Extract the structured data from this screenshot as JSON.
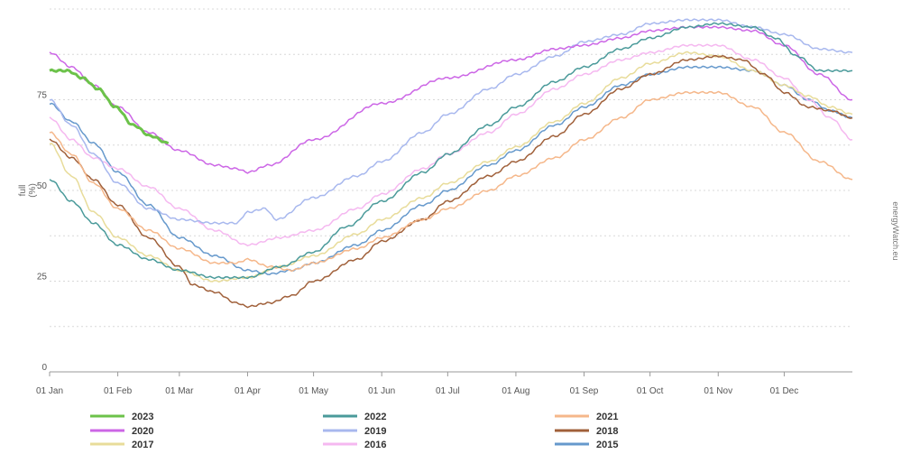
{
  "chart_data": {
    "type": "line",
    "title": "",
    "xlabel": "",
    "ylabel": "full\n(%)",
    "ylim": [
      0,
      100
    ],
    "yticks": [
      0,
      25,
      50,
      75
    ],
    "grid": true,
    "legend_position": "bottom",
    "x_tick_labels": [
      "01 Jan",
      "01 Feb",
      "01 Mar",
      "01 Apr",
      "01 May",
      "01 Jun",
      "01 Jul",
      "01 Aug",
      "01 Sep",
      "01 Oct",
      "01 Nov",
      "01 Dec"
    ],
    "x_tick_days": [
      0,
      31,
      59,
      90,
      120,
      151,
      181,
      212,
      243,
      273,
      304,
      334
    ],
    "x_range_days": [
      0,
      365
    ],
    "credit": "energyWatch.eu",
    "series": [
      {
        "name": "2023",
        "color": "#6cc24a",
        "width": 3,
        "points": [
          [
            0,
            83
          ],
          [
            8,
            83
          ],
          [
            15,
            81
          ],
          [
            22,
            78
          ],
          [
            30,
            73
          ],
          [
            38,
            68
          ],
          [
            46,
            65
          ],
          [
            54,
            63
          ]
        ]
      },
      {
        "name": "2022",
        "color": "#4a9a9a",
        "width": 1.5,
        "points": [
          [
            0,
            53
          ],
          [
            10,
            47
          ],
          [
            20,
            41
          ],
          [
            31,
            35
          ],
          [
            45,
            31
          ],
          [
            59,
            28
          ],
          [
            75,
            26
          ],
          [
            90,
            26
          ],
          [
            105,
            29
          ],
          [
            120,
            33
          ],
          [
            135,
            40
          ],
          [
            151,
            47
          ],
          [
            170,
            55
          ],
          [
            181,
            60
          ],
          [
            200,
            68
          ],
          [
            212,
            73
          ],
          [
            230,
            80
          ],
          [
            243,
            84
          ],
          [
            260,
            89
          ],
          [
            273,
            92
          ],
          [
            290,
            95
          ],
          [
            304,
            96
          ],
          [
            320,
            95
          ],
          [
            330,
            92
          ],
          [
            340,
            87
          ],
          [
            350,
            83
          ],
          [
            365,
            83
          ]
        ]
      },
      {
        "name": "2021",
        "color": "#f5b78a",
        "width": 1.5,
        "points": [
          [
            0,
            66
          ],
          [
            10,
            60
          ],
          [
            20,
            52
          ],
          [
            31,
            45
          ],
          [
            45,
            39
          ],
          [
            59,
            34
          ],
          [
            75,
            30
          ],
          [
            85,
            30
          ],
          [
            90,
            31
          ],
          [
            100,
            29
          ],
          [
            110,
            28
          ],
          [
            120,
            30
          ],
          [
            140,
            34
          ],
          [
            151,
            37
          ],
          [
            170,
            42
          ],
          [
            181,
            45
          ],
          [
            200,
            50
          ],
          [
            212,
            54
          ],
          [
            230,
            59
          ],
          [
            243,
            64
          ],
          [
            260,
            70
          ],
          [
            273,
            75
          ],
          [
            290,
            77
          ],
          [
            304,
            77
          ],
          [
            320,
            73
          ],
          [
            334,
            66
          ],
          [
            350,
            58
          ],
          [
            365,
            53
          ]
        ]
      },
      {
        "name": "2020",
        "color": "#cc66e6",
        "width": 1.5,
        "points": [
          [
            0,
            88
          ],
          [
            10,
            84
          ],
          [
            20,
            79
          ],
          [
            31,
            73
          ],
          [
            45,
            66
          ],
          [
            59,
            61
          ],
          [
            75,
            57
          ],
          [
            85,
            56
          ],
          [
            90,
            55
          ],
          [
            100,
            57
          ],
          [
            120,
            64
          ],
          [
            151,
            74
          ],
          [
            181,
            81
          ],
          [
            212,
            86
          ],
          [
            230,
            89
          ],
          [
            243,
            90
          ],
          [
            260,
            92
          ],
          [
            273,
            94
          ],
          [
            290,
            95
          ],
          [
            304,
            95
          ],
          [
            320,
            94
          ],
          [
            334,
            90
          ],
          [
            350,
            82
          ],
          [
            365,
            75
          ]
        ]
      },
      {
        "name": "2019",
        "color": "#a8b8ee",
        "width": 1.5,
        "points": [
          [
            0,
            75
          ],
          [
            10,
            68
          ],
          [
            20,
            60
          ],
          [
            31,
            52
          ],
          [
            45,
            45
          ],
          [
            59,
            42
          ],
          [
            75,
            41
          ],
          [
            85,
            41
          ],
          [
            90,
            44
          ],
          [
            98,
            45
          ],
          [
            103,
            42
          ],
          [
            120,
            48
          ],
          [
            140,
            54
          ],
          [
            151,
            58
          ],
          [
            170,
            66
          ],
          [
            181,
            71
          ],
          [
            200,
            78
          ],
          [
            212,
            82
          ],
          [
            230,
            87
          ],
          [
            243,
            91
          ],
          [
            260,
            93
          ],
          [
            273,
            96
          ],
          [
            290,
            97
          ],
          [
            304,
            97
          ],
          [
            320,
            95
          ],
          [
            334,
            93
          ],
          [
            350,
            89
          ],
          [
            365,
            88
          ]
        ]
      },
      {
        "name": "2018",
        "color": "#a0603a",
        "width": 1.5,
        "points": [
          [
            0,
            64
          ],
          [
            10,
            59
          ],
          [
            20,
            53
          ],
          [
            31,
            46
          ],
          [
            45,
            37
          ],
          [
            59,
            29
          ],
          [
            65,
            24
          ],
          [
            75,
            22
          ],
          [
            85,
            19
          ],
          [
            90,
            18
          ],
          [
            100,
            19
          ],
          [
            110,
            21
          ],
          [
            120,
            25
          ],
          [
            140,
            31
          ],
          [
            151,
            36
          ],
          [
            170,
            42
          ],
          [
            181,
            47
          ],
          [
            200,
            54
          ],
          [
            212,
            58
          ],
          [
            230,
            65
          ],
          [
            243,
            71
          ],
          [
            260,
            78
          ],
          [
            273,
            82
          ],
          [
            290,
            86
          ],
          [
            304,
            87
          ],
          [
            315,
            86
          ],
          [
            325,
            82
          ],
          [
            334,
            77
          ],
          [
            345,
            73
          ],
          [
            355,
            72
          ],
          [
            365,
            70
          ]
        ]
      },
      {
        "name": "2017",
        "color": "#e8dc9a",
        "width": 1.5,
        "points": [
          [
            0,
            63
          ],
          [
            10,
            54
          ],
          [
            20,
            44
          ],
          [
            31,
            37
          ],
          [
            45,
            32
          ],
          [
            59,
            28
          ],
          [
            75,
            25
          ],
          [
            90,
            26
          ],
          [
            105,
            29
          ],
          [
            120,
            32
          ],
          [
            140,
            38
          ],
          [
            151,
            42
          ],
          [
            170,
            48
          ],
          [
            181,
            52
          ],
          [
            200,
            58
          ],
          [
            212,
            62
          ],
          [
            230,
            69
          ],
          [
            243,
            74
          ],
          [
            260,
            81
          ],
          [
            273,
            85
          ],
          [
            290,
            88
          ],
          [
            304,
            87
          ],
          [
            320,
            83
          ],
          [
            334,
            79
          ],
          [
            345,
            76
          ],
          [
            355,
            73
          ],
          [
            365,
            71
          ]
        ]
      },
      {
        "name": "2016",
        "color": "#f5b8f0",
        "width": 1.5,
        "points": [
          [
            0,
            70
          ],
          [
            10,
            64
          ],
          [
            20,
            59
          ],
          [
            31,
            56
          ],
          [
            45,
            51
          ],
          [
            59,
            45
          ],
          [
            75,
            39
          ],
          [
            90,
            35
          ],
          [
            105,
            37
          ],
          [
            120,
            39
          ],
          [
            140,
            45
          ],
          [
            151,
            49
          ],
          [
            170,
            56
          ],
          [
            181,
            60
          ],
          [
            200,
            66
          ],
          [
            212,
            71
          ],
          [
            230,
            78
          ],
          [
            243,
            82
          ],
          [
            260,
            86
          ],
          [
            273,
            88
          ],
          [
            290,
            90
          ],
          [
            304,
            90
          ],
          [
            320,
            86
          ],
          [
            334,
            81
          ],
          [
            345,
            75
          ],
          [
            355,
            70
          ],
          [
            365,
            64
          ]
        ]
      },
      {
        "name": "2015",
        "color": "#6699cc",
        "width": 1.5,
        "points": [
          [
            0,
            74
          ],
          [
            10,
            69
          ],
          [
            20,
            63
          ],
          [
            31,
            55
          ],
          [
            45,
            46
          ],
          [
            59,
            37
          ],
          [
            75,
            32
          ],
          [
            90,
            28
          ],
          [
            100,
            27
          ],
          [
            110,
            28
          ],
          [
            120,
            30
          ],
          [
            140,
            35
          ],
          [
            151,
            39
          ],
          [
            170,
            46
          ],
          [
            181,
            50
          ],
          [
            200,
            57
          ],
          [
            212,
            61
          ],
          [
            230,
            68
          ],
          [
            243,
            73
          ],
          [
            260,
            79
          ],
          [
            273,
            82
          ],
          [
            290,
            84
          ],
          [
            304,
            84
          ],
          [
            320,
            83
          ],
          [
            334,
            79
          ],
          [
            345,
            75
          ],
          [
            355,
            72
          ],
          [
            365,
            70
          ]
        ]
      }
    ]
  }
}
